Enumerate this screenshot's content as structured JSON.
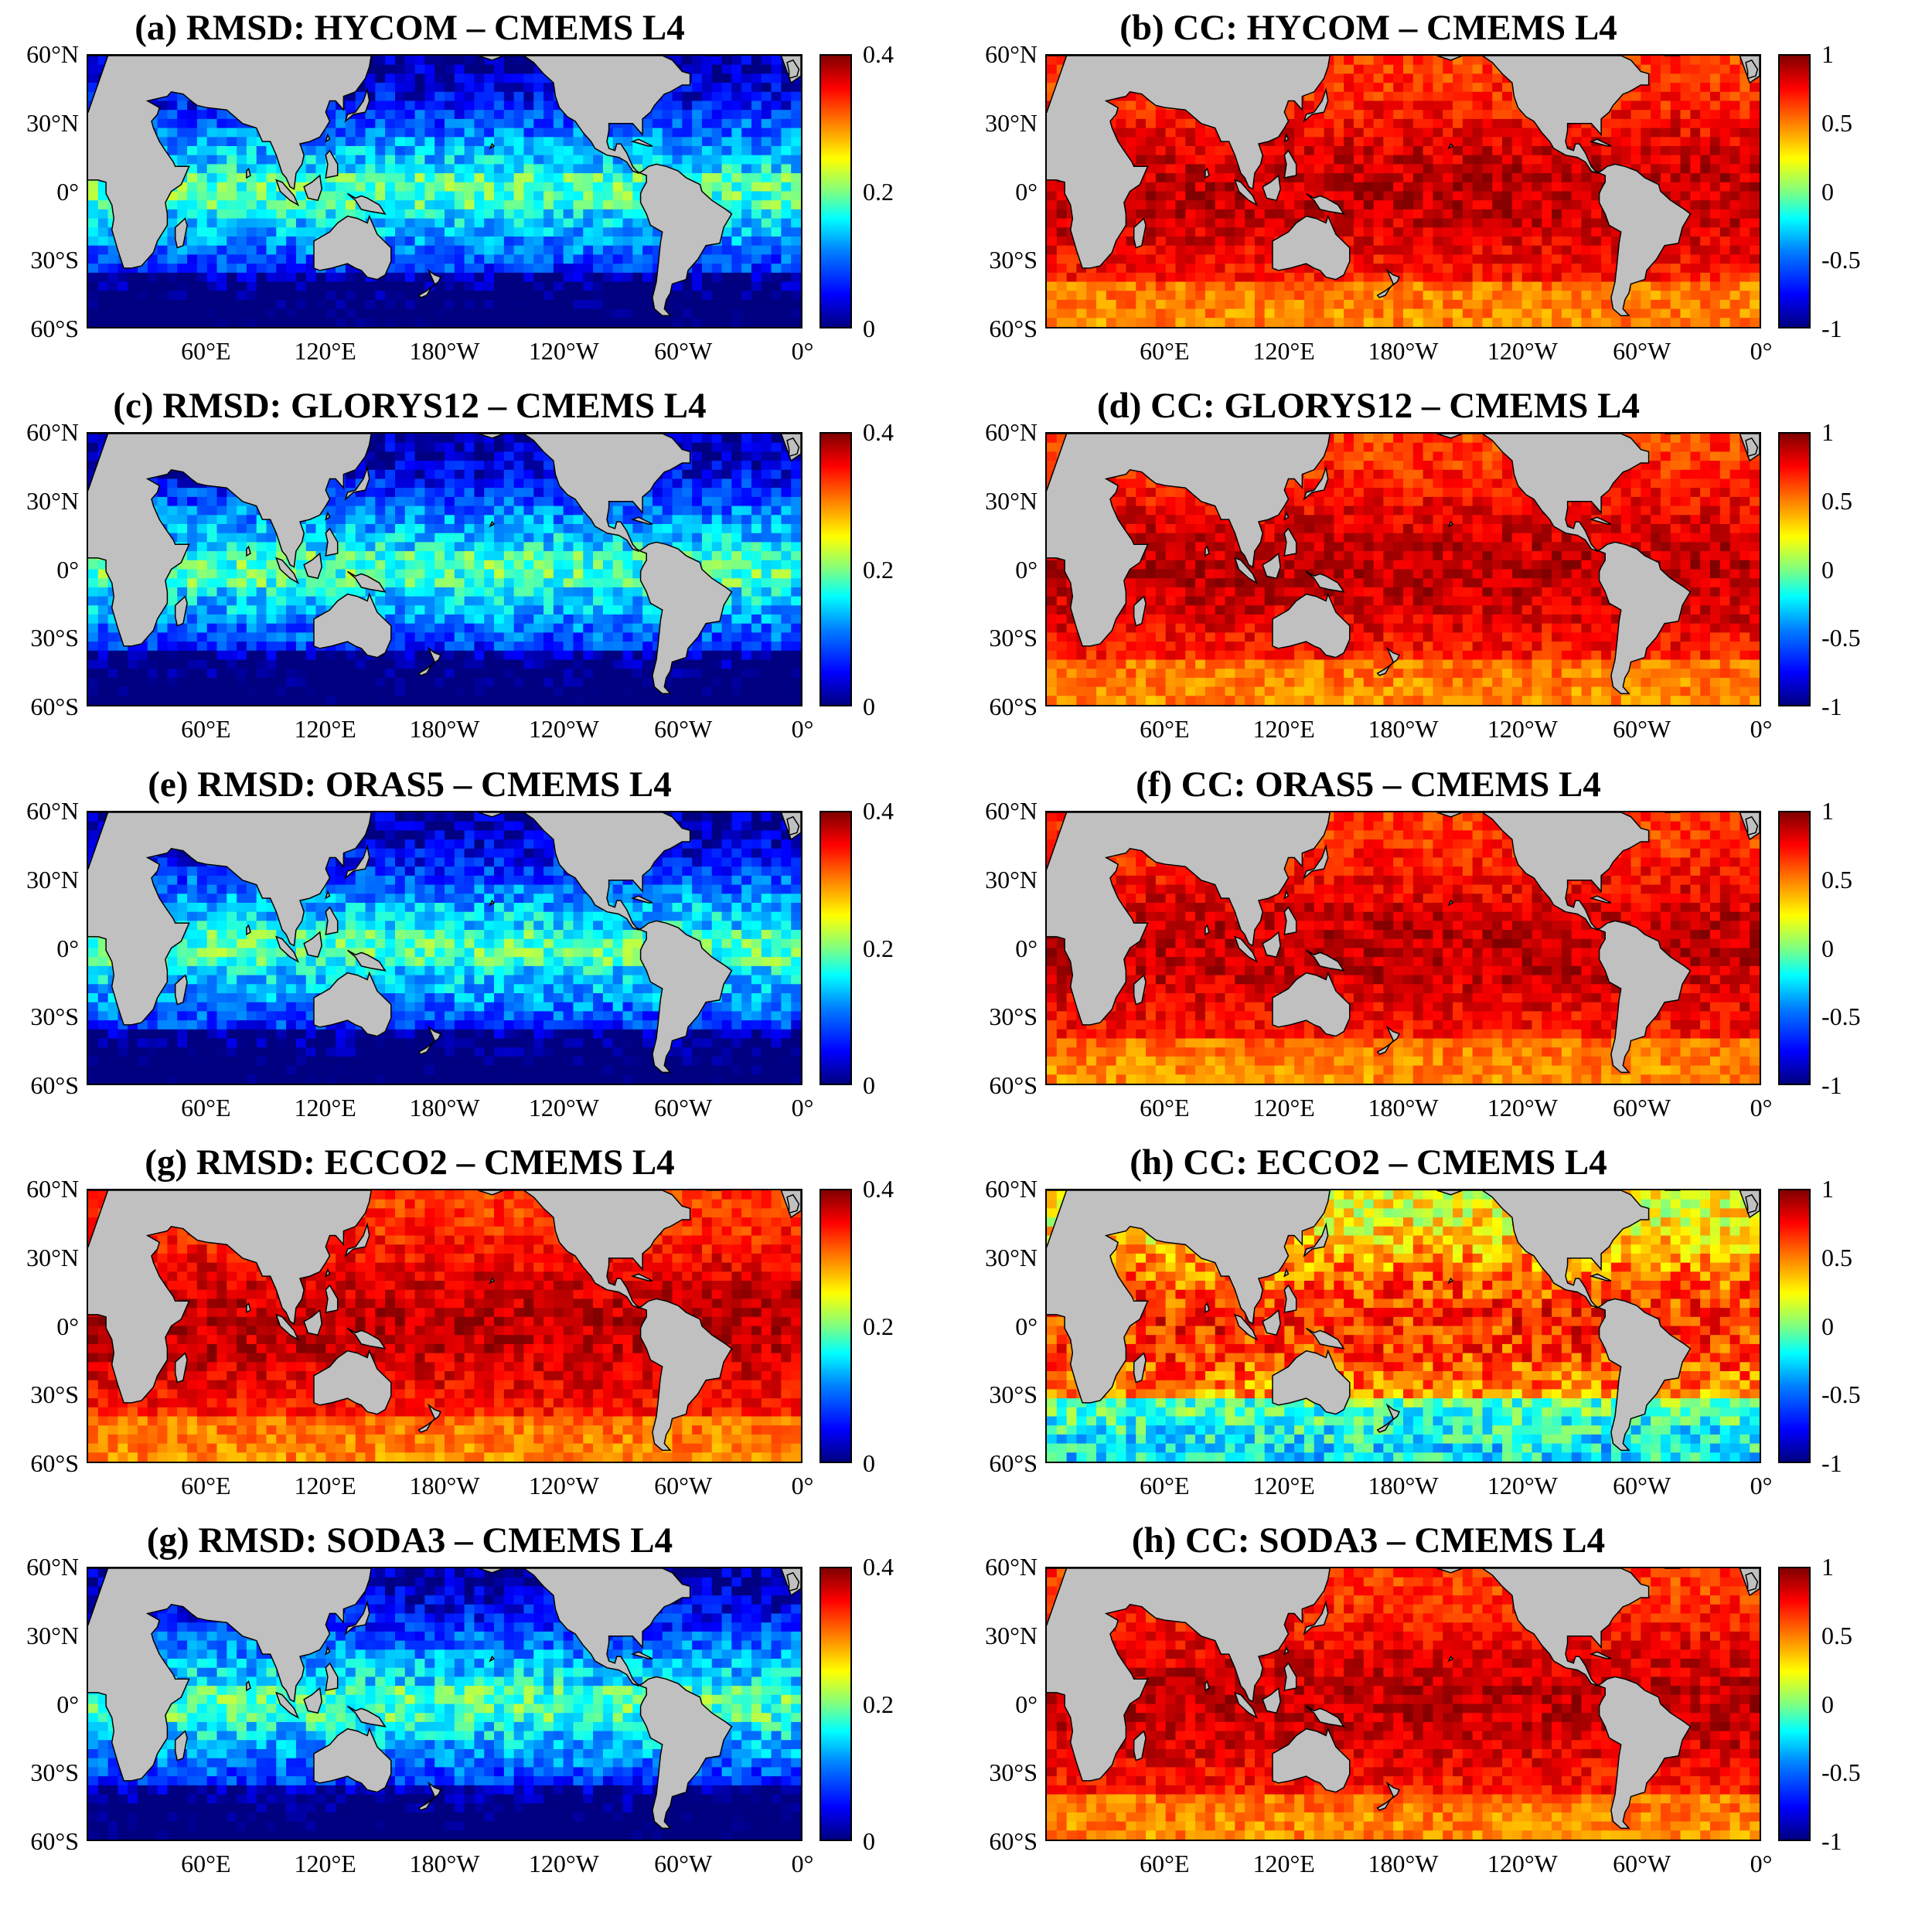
{
  "panels": [
    {
      "title": "(a) RMSD:  HYCOM – CMEMS L4",
      "metric": "RMSD",
      "model": "HYCOM",
      "colorbar_ticks": [
        "0.4",
        "0.2",
        "0"
      ],
      "colorbar_range": [
        0,
        0.4
      ],
      "level": "low"
    },
    {
      "title": "(b) CC:  HYCOM – CMEMS L4",
      "metric": "CC",
      "model": "HYCOM",
      "colorbar_ticks": [
        "1",
        "0.5",
        "0",
        "-0.5",
        "-1"
      ],
      "colorbar_range": [
        -1,
        1
      ],
      "level": "high"
    },
    {
      "title": "(c) RMSD:  GLORYS12 – CMEMS L4",
      "metric": "RMSD",
      "model": "GLORYS12",
      "colorbar_ticks": [
        "0.4",
        "0.2",
        "0"
      ],
      "colorbar_range": [
        0,
        0.4
      ],
      "level": "low"
    },
    {
      "title": "(d) CC:  GLORYS12 – CMEMS L4",
      "metric": "CC",
      "model": "GLORYS12",
      "colorbar_ticks": [
        "1",
        "0.5",
        "0",
        "-0.5",
        "-1"
      ],
      "colorbar_range": [
        -1,
        1
      ],
      "level": "high"
    },
    {
      "title": "(e) RMSD:  ORAS5 – CMEMS L4",
      "metric": "RMSD",
      "model": "ORAS5",
      "colorbar_ticks": [
        "0.4",
        "0.2",
        "0"
      ],
      "colorbar_range": [
        0,
        0.4
      ],
      "level": "low"
    },
    {
      "title": "(f) CC:  ORAS5 – CMEMS L4",
      "metric": "CC",
      "model": "ORAS5",
      "colorbar_ticks": [
        "1",
        "0.5",
        "0",
        "-0.5",
        "-1"
      ],
      "colorbar_range": [
        -1,
        1
      ],
      "level": "high"
    },
    {
      "title": "(g) RMSD:  ECCO2 – CMEMS L4",
      "metric": "RMSD",
      "model": "ECCO2",
      "colorbar_ticks": [
        "0.4",
        "0.2",
        "0"
      ],
      "colorbar_range": [
        0,
        0.4
      ],
      "level": "high"
    },
    {
      "title": "(h) CC:  ECCO2 – CMEMS L4",
      "metric": "CC",
      "model": "ECCO2",
      "colorbar_ticks": [
        "1",
        "0.5",
        "0",
        "-0.5",
        "-1"
      ],
      "colorbar_range": [
        -1,
        1
      ],
      "level": "mid"
    },
    {
      "title": "(g) RMSD:  SODA3 – CMEMS L4",
      "metric": "RMSD",
      "model": "SODA3",
      "colorbar_ticks": [
        "0.4",
        "0.2",
        "0"
      ],
      "colorbar_range": [
        0,
        0.4
      ],
      "level": "low"
    },
    {
      "title": "(h) CC:  SODA3 – CMEMS L4",
      "metric": "CC",
      "model": "SODA3",
      "colorbar_ticks": [
        "1",
        "0.5",
        "0",
        "-0.5",
        "-1"
      ],
      "colorbar_range": [
        -1,
        1
      ],
      "level": "high"
    }
  ],
  "lat_ticks": [
    "60°N",
    "30°N",
    "0°",
    "30°S",
    "60°S"
  ],
  "lon_ticks": [
    "60°E",
    "120°E",
    "180°W",
    "120°W",
    "60°W",
    "0°"
  ],
  "lon_tick_values": [
    60,
    120,
    180,
    240,
    300,
    360
  ],
  "lat_tick_values": [
    60,
    30,
    0,
    -30,
    -60
  ],
  "map_extent": {
    "lon": [
      0,
      360
    ],
    "lat": [
      -60,
      60
    ]
  },
  "colors": {
    "land": "#c0c0c0",
    "coast": "#000000",
    "rmsd_low": "#1e64ff",
    "rmsd_high": "#8b0000",
    "cc_high": "#b4140a",
    "cc_mid": "#e07020"
  },
  "colormap": "jet"
}
